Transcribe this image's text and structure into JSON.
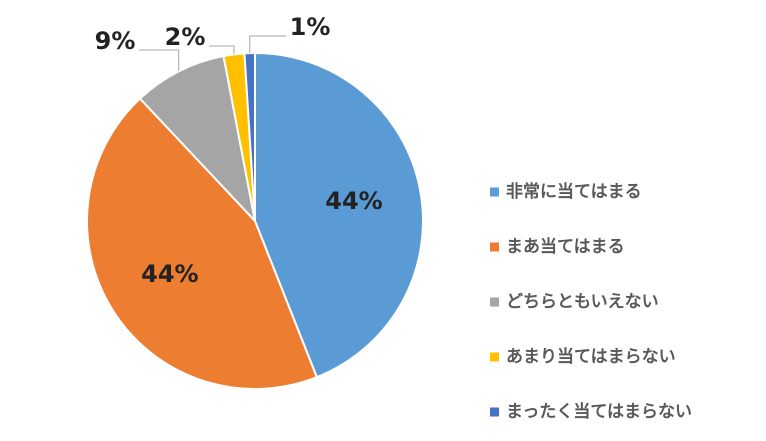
{
  "chart_data": {
    "type": "pie",
    "categories": [
      "非常に当てはまる",
      "まあ当てはまる",
      "どちらともいえない",
      "あまり当てはまらない",
      "まったく当てはまらない"
    ],
    "values": [
      44,
      44,
      9,
      2,
      1
    ],
    "value_labels": [
      "44%",
      "44%",
      "9%",
      "2%",
      "1%"
    ],
    "colors": [
      "#5b9bd5",
      "#ed7d31",
      "#a5a5a5",
      "#ffc000",
      "#4472c4"
    ],
    "legend": "right"
  }
}
